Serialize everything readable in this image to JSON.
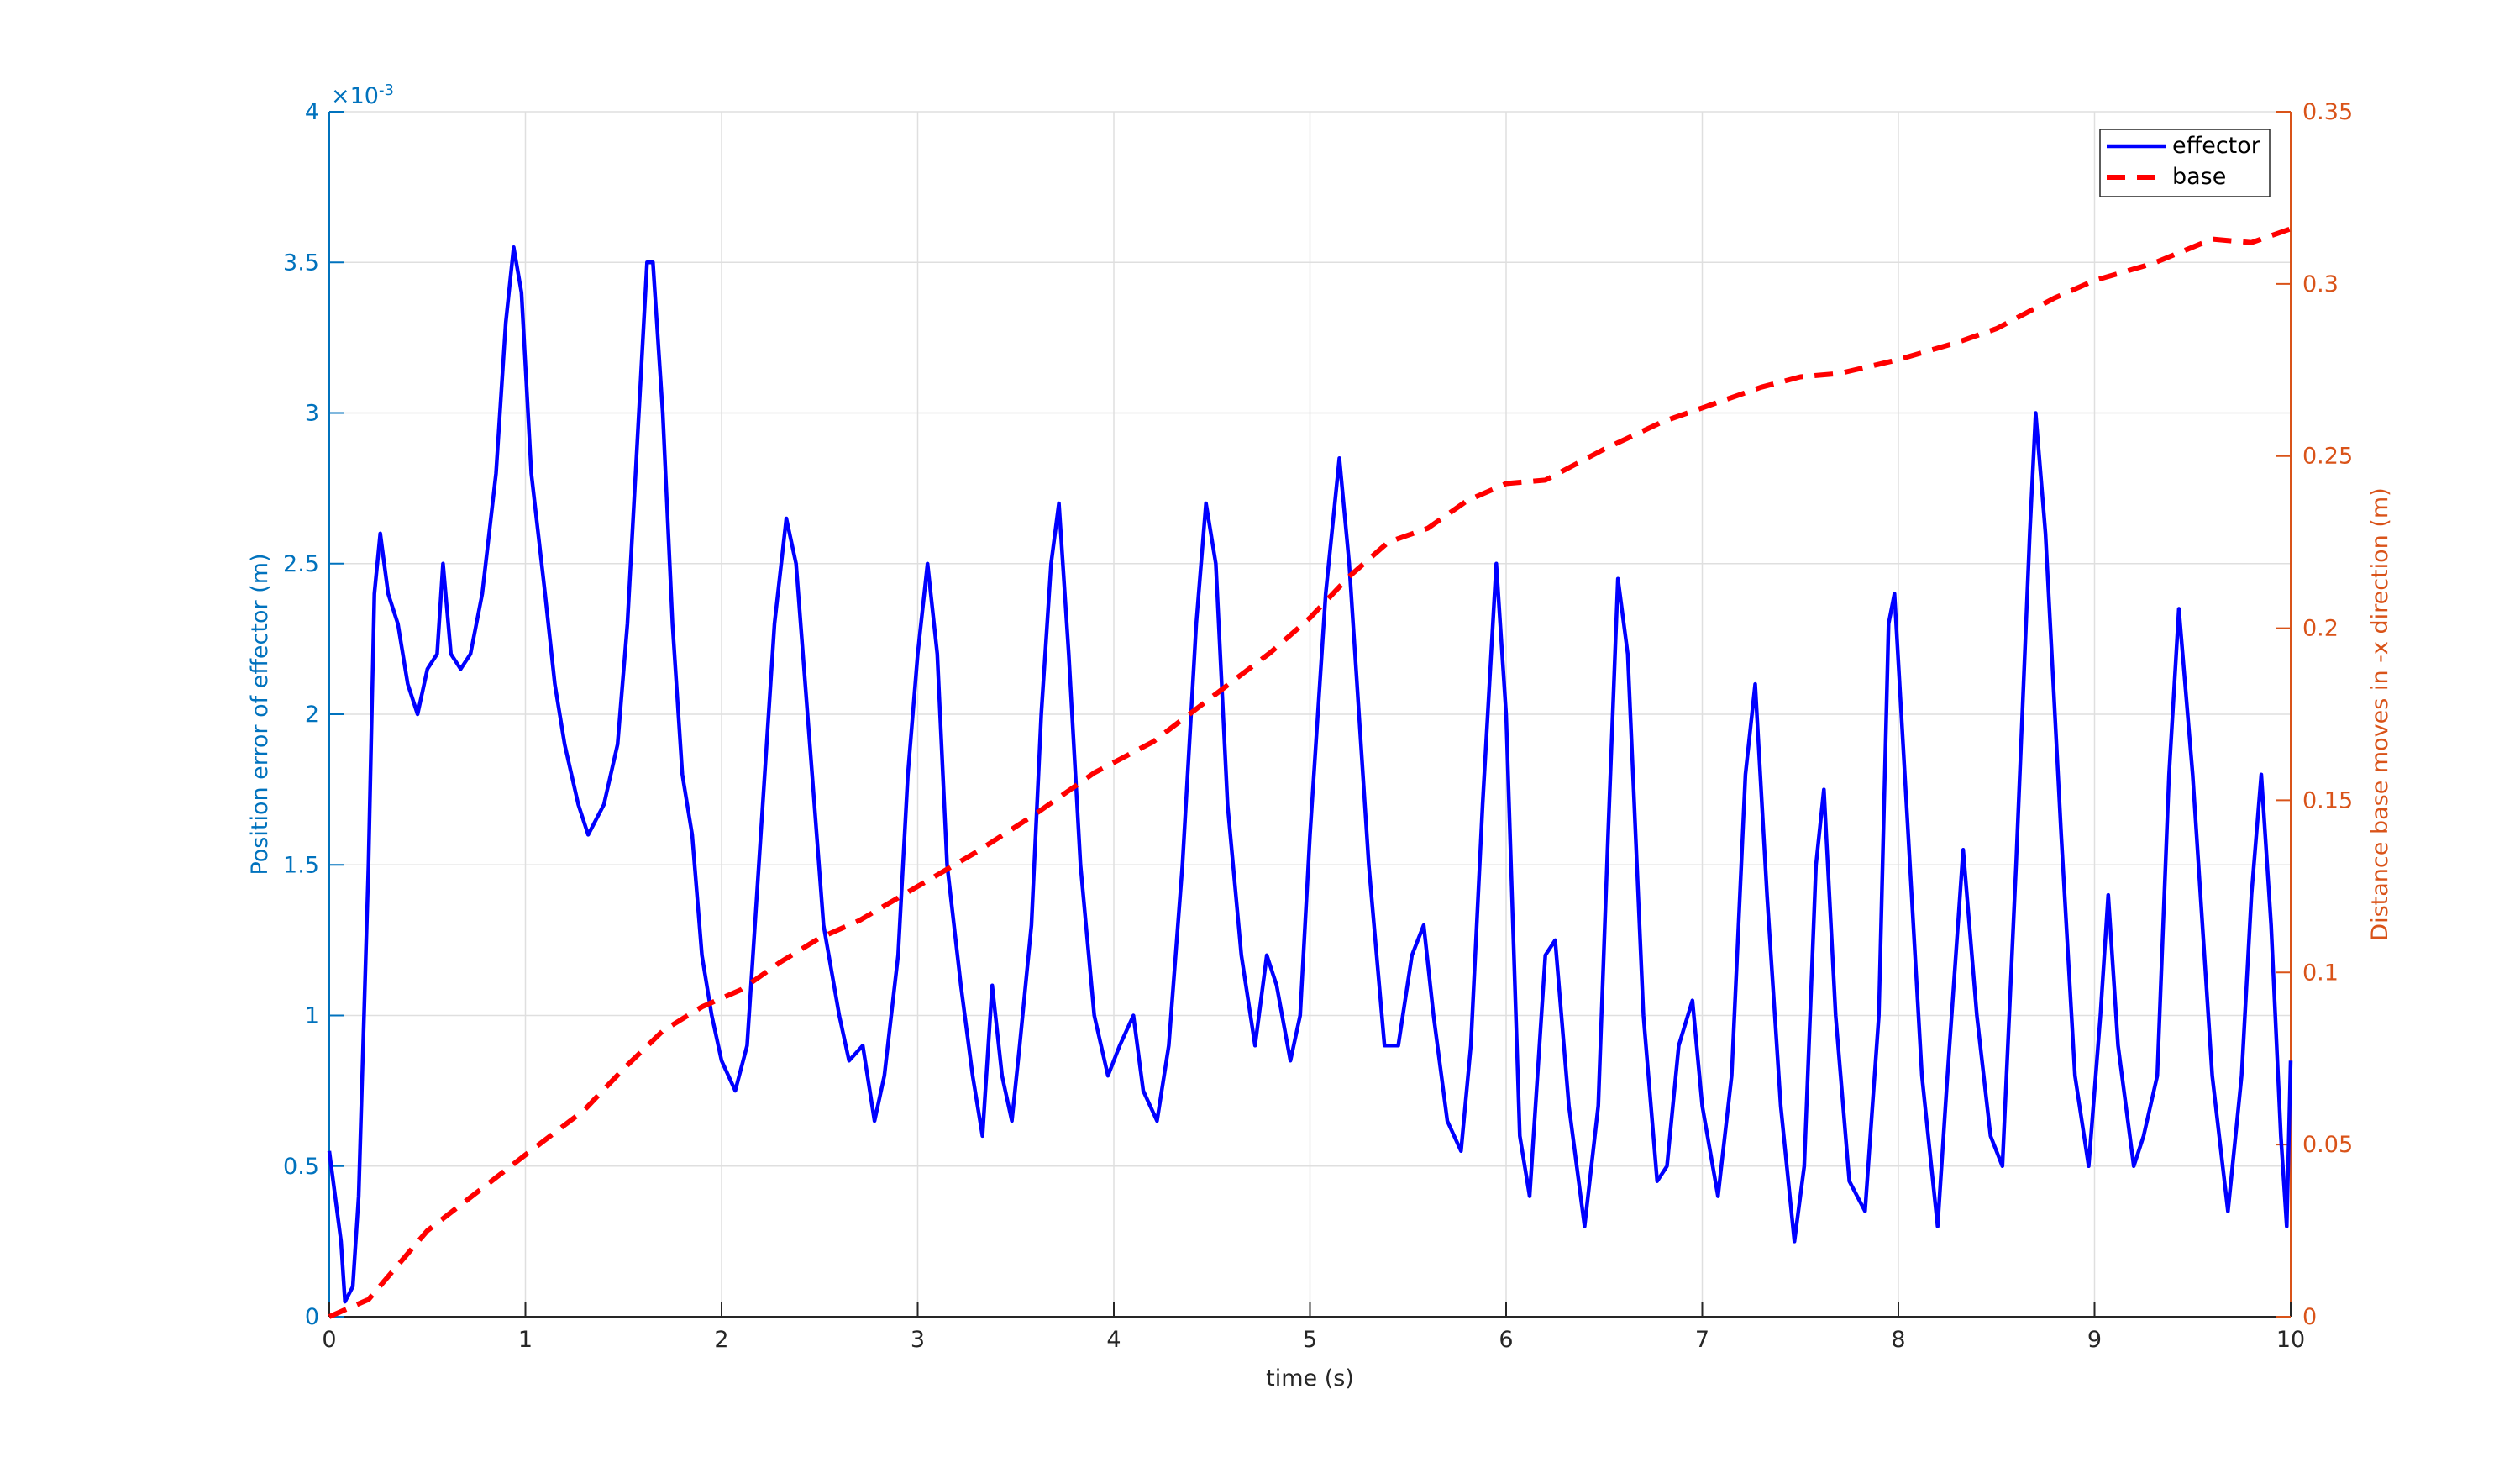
{
  "chart_data": {
    "type": "line",
    "x_label": "time (s)",
    "y_label": "Position error of effector (m)",
    "y2_label": "Distance base moves in -x direction (m)",
    "y_multiplier": {
      "base": "×10",
      "exponent": "-3"
    },
    "xlim": [
      0,
      10
    ],
    "xticks": [
      0,
      1,
      2,
      3,
      4,
      5,
      6,
      7,
      8,
      9,
      10
    ],
    "ylim": [
      0,
      4
    ],
    "yticks": [
      0,
      0.5,
      1,
      1.5,
      2,
      2.5,
      3,
      3.5,
      4
    ],
    "y2lim": [
      0,
      0.35
    ],
    "y2ticks": [
      0,
      0.05,
      0.1,
      0.15,
      0.2,
      0.25,
      0.3,
      0.35
    ],
    "y_axis_color": "#0072bd",
    "y2_axis_color": "#d95319",
    "grid": true,
    "legend": "northeast",
    "series": [
      {
        "name": "effector",
        "color": "#0000ff",
        "line_style": "solid",
        "axis": "y",
        "x": [
          0,
          0.03,
          0.06,
          0.08,
          0.12,
          0.15,
          0.2,
          0.23,
          0.26,
          0.3,
          0.35,
          0.4,
          0.45,
          0.5,
          0.55,
          0.58,
          0.62,
          0.67,
          0.72,
          0.78,
          0.85,
          0.9,
          0.94,
          0.98,
          1.03,
          1.1,
          1.15,
          1.2,
          1.27,
          1.32,
          1.4,
          1.47,
          1.52,
          1.57,
          1.62,
          1.65,
          1.7,
          1.75,
          1.8,
          1.85,
          1.9,
          1.95,
          2.0,
          2.07,
          2.13,
          2.2,
          2.27,
          2.33,
          2.38,
          2.45,
          2.52,
          2.6,
          2.65,
          2.72,
          2.78,
          2.83,
          2.9,
          2.95,
          3.0,
          3.05,
          3.1,
          3.15,
          3.22,
          3.28,
          3.33,
          3.38,
          3.43,
          3.48,
          3.52,
          3.58,
          3.63,
          3.68,
          3.72,
          3.77,
          3.83,
          3.9,
          3.97,
          4.03,
          4.1,
          4.15,
          4.22,
          4.28,
          4.35,
          4.42,
          4.47,
          4.52,
          4.58,
          4.65,
          4.72,
          4.78,
          4.83,
          4.9,
          4.95,
          5.0,
          5.08,
          5.15,
          5.2,
          5.3,
          5.38,
          5.45,
          5.52,
          5.58,
          5.63,
          5.7,
          5.77,
          5.82,
          5.88,
          5.95,
          6.0,
          6.07,
          6.12,
          6.2,
          6.25,
          6.32,
          6.4,
          6.47,
          6.52,
          6.57,
          6.62,
          6.7,
          6.77,
          6.82,
          6.88,
          6.95,
          7.0,
          7.08,
          7.15,
          7.22,
          7.27,
          7.33,
          7.4,
          7.47,
          7.52,
          7.58,
          7.62,
          7.68,
          7.75,
          7.83,
          7.9,
          7.95,
          7.98,
          8.05,
          8.12,
          8.2,
          8.25,
          8.33,
          8.4,
          8.47,
          8.53,
          8.6,
          8.67,
          8.7,
          8.75,
          8.83,
          8.9,
          8.97,
          9.03,
          9.07,
          9.12,
          9.2,
          9.25,
          9.32,
          9.38,
          9.43,
          9.5,
          9.6,
          9.68,
          9.75,
          9.8,
          9.85,
          9.9,
          9.95,
          9.98,
          10.0
        ],
        "values": [
          0.55,
          0.4,
          0.25,
          0.05,
          0.1,
          0.4,
          1.5,
          2.4,
          2.6,
          2.4,
          2.3,
          2.1,
          2.0,
          2.15,
          2.2,
          2.5,
          2.2,
          2.15,
          2.2,
          2.4,
          2.8,
          3.3,
          3.55,
          3.4,
          2.8,
          2.4,
          2.1,
          1.9,
          1.7,
          1.6,
          1.7,
          1.9,
          2.3,
          2.9,
          3.5,
          3.5,
          3.0,
          2.3,
          1.8,
          1.6,
          1.2,
          1.0,
          0.85,
          0.75,
          0.9,
          1.6,
          2.3,
          2.65,
          2.5,
          1.9,
          1.3,
          1.0,
          0.85,
          0.9,
          0.65,
          0.8,
          1.2,
          1.8,
          2.2,
          2.5,
          2.2,
          1.5,
          1.1,
          0.8,
          0.6,
          1.1,
          0.8,
          0.65,
          0.9,
          1.3,
          2.0,
          2.5,
          2.7,
          2.2,
          1.5,
          1.0,
          0.8,
          0.9,
          1.0,
          0.75,
          0.65,
          0.9,
          1.5,
          2.3,
          2.7,
          2.5,
          1.7,
          1.2,
          0.9,
          1.2,
          1.1,
          0.85,
          1.0,
          1.6,
          2.4,
          2.85,
          2.5,
          1.5,
          0.9,
          0.9,
          1.2,
          1.3,
          1.0,
          0.65,
          0.55,
          0.9,
          1.7,
          2.5,
          2.0,
          0.6,
          0.4,
          1.2,
          1.25,
          0.7,
          0.3,
          0.7,
          1.6,
          2.45,
          2.2,
          1.0,
          0.45,
          0.5,
          0.9,
          1.05,
          0.7,
          0.4,
          0.8,
          1.8,
          2.1,
          1.4,
          0.7,
          0.25,
          0.5,
          1.5,
          1.75,
          1.0,
          0.45,
          0.35,
          1.0,
          2.3,
          2.4,
          1.6,
          0.8,
          0.3,
          0.8,
          1.55,
          1.0,
          0.6,
          0.5,
          1.5,
          2.6,
          3.0,
          2.6,
          1.6,
          0.8,
          0.5,
          1.0,
          1.4,
          0.9,
          0.5,
          0.6,
          0.8,
          1.8,
          2.35,
          1.8,
          0.8,
          0.35,
          0.8,
          1.4,
          1.8,
          1.3,
          0.6,
          0.3,
          0.85
        ]
      },
      {
        "name": "base",
        "color": "#ff0000",
        "line_style": "dashed",
        "axis": "y2",
        "x": [
          0,
          0.2,
          0.5,
          1,
          1.3,
          1.5,
          1.7,
          1.9,
          2.1,
          2.3,
          2.5,
          2.7,
          3.0,
          3.3,
          3.6,
          3.9,
          4.2,
          4.5,
          4.8,
          5.0,
          5.2,
          5.4,
          5.6,
          5.8,
          6.0,
          6.2,
          6.5,
          6.8,
          7.0,
          7.3,
          7.5,
          7.7,
          8.0,
          8.3,
          8.5,
          8.8,
          9.0,
          9.3,
          9.6,
          9.8,
          10
        ],
        "values": [
          0,
          0.005,
          0.025,
          0.047,
          0.06,
          0.072,
          0.083,
          0.09,
          0.095,
          0.103,
          0.11,
          0.115,
          0.125,
          0.135,
          0.146,
          0.158,
          0.167,
          0.18,
          0.193,
          0.203,
          0.215,
          0.225,
          0.229,
          0.237,
          0.242,
          0.243,
          0.252,
          0.26,
          0.264,
          0.27,
          0.273,
          0.274,
          0.278,
          0.283,
          0.287,
          0.296,
          0.301,
          0.306,
          0.313,
          0.312,
          0.316
        ]
      }
    ]
  }
}
